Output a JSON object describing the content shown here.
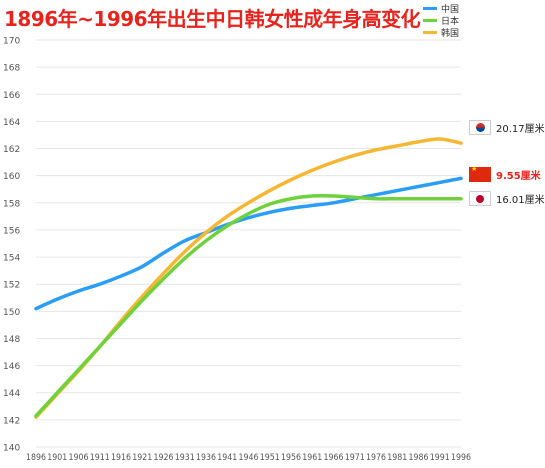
{
  "title": "1896年~1996年出生中日韩女性成年身高变化",
  "colors": {
    "china": "#2a9df4",
    "japan": "#6fd13c",
    "korea": "#f5b731",
    "grid": "#e6e6e6",
    "axis": "#555555",
    "title": "#e8231d"
  },
  "chart_data": {
    "type": "line",
    "title": "1896年~1996年出生中日韩女性成年身高变化",
    "xlabel": "",
    "ylabel": "",
    "x": [
      "1896",
      "1901",
      "1906",
      "1911",
      "1916",
      "1921",
      "1926",
      "1931",
      "1936",
      "1941",
      "1946",
      "1951",
      "1956",
      "1961",
      "1966",
      "1971",
      "1976",
      "1981",
      "1986",
      "1991",
      "1996"
    ],
    "ylim": [
      140,
      170
    ],
    "yticks": [
      140,
      142,
      144,
      146,
      148,
      150,
      152,
      154,
      156,
      158,
      160,
      162,
      164,
      166,
      168,
      170
    ],
    "grid": true,
    "legend_position": "top-right",
    "series": [
      {
        "name": "中国",
        "color": "#2a9df4",
        "values": [
          150.2,
          150.9,
          151.5,
          152.0,
          152.6,
          153.3,
          154.3,
          155.2,
          155.8,
          156.4,
          156.9,
          157.3,
          157.6,
          157.8,
          158.0,
          158.3,
          158.6,
          158.9,
          159.2,
          159.5,
          159.8
        ]
      },
      {
        "name": "日本",
        "color": "#6fd13c",
        "values": [
          142.3,
          144.0,
          145.7,
          147.4,
          149.1,
          150.8,
          152.4,
          153.9,
          155.2,
          156.3,
          157.2,
          157.9,
          158.3,
          158.5,
          158.5,
          158.4,
          158.3,
          158.3,
          158.3,
          158.3,
          158.3
        ]
      },
      {
        "name": "韩国",
        "color": "#f5b731",
        "values": [
          142.2,
          143.9,
          145.6,
          147.4,
          149.3,
          151.1,
          152.8,
          154.4,
          155.8,
          157.0,
          158.0,
          158.9,
          159.7,
          160.4,
          161.0,
          161.5,
          161.9,
          162.2,
          162.5,
          162.7,
          162.4
        ]
      }
    ],
    "annotations": [
      {
        "series": "韩国",
        "text": "20.17厘米",
        "color": "#222222",
        "flag": "korea"
      },
      {
        "series": "中国",
        "text": "9.55厘米",
        "color": "#e8231d",
        "flag": "china"
      },
      {
        "series": "日本",
        "text": "16.01厘米",
        "color": "#222222",
        "flag": "japan"
      }
    ]
  }
}
